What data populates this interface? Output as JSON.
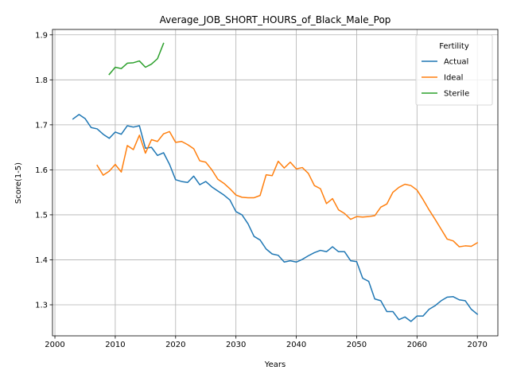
{
  "chart_data": {
    "type": "line",
    "title": "Average_JOB_SHORT_HOURS_of_Black_Male_Pop",
    "xlabel": "Years",
    "ylabel": "Score(1-5)",
    "xlim": [
      1999.6,
      2073.4
    ],
    "ylim": [
      1.231,
      1.912
    ],
    "x_ticks": [
      2000,
      2010,
      2020,
      2030,
      2040,
      2050,
      2060,
      2070
    ],
    "y_ticks": [
      1.3,
      1.4,
      1.5,
      1.6,
      1.7,
      1.8,
      1.9
    ],
    "grid": true,
    "legend": {
      "title": "Fertility",
      "placement": "top-right"
    },
    "series": [
      {
        "name": "Actual",
        "color": "#1f77b4",
        "x": [
          2003,
          2004,
          2005,
          2006,
          2007,
          2008,
          2009,
          2010,
          2011,
          2012,
          2013,
          2014,
          2015,
          2016,
          2017,
          2018,
          2019,
          2020,
          2021,
          2022,
          2023,
          2024,
          2025,
          2026,
          2027,
          2028,
          2029,
          2030,
          2031,
          2032,
          2033,
          2034,
          2035,
          2036,
          2037,
          2038,
          2039,
          2040,
          2041,
          2042,
          2043,
          2044,
          2045,
          2046,
          2047,
          2048,
          2049,
          2050,
          2051,
          2052,
          2053,
          2054,
          2055,
          2056,
          2057,
          2058,
          2059,
          2060,
          2061,
          2062,
          2063,
          2064,
          2065,
          2066,
          2067,
          2068,
          2069,
          2070
        ],
        "values": [
          1.713,
          1.723,
          1.714,
          1.694,
          1.691,
          1.679,
          1.67,
          1.684,
          1.679,
          1.698,
          1.695,
          1.698,
          1.648,
          1.65,
          1.632,
          1.638,
          1.612,
          1.578,
          1.574,
          1.572,
          1.586,
          1.567,
          1.574,
          1.562,
          1.553,
          1.544,
          1.533,
          1.507,
          1.5,
          1.48,
          1.452,
          1.444,
          1.424,
          1.413,
          1.41,
          1.395,
          1.398,
          1.395,
          1.401,
          1.409,
          1.416,
          1.421,
          1.418,
          1.429,
          1.418,
          1.418,
          1.398,
          1.396,
          1.359,
          1.352,
          1.313,
          1.309,
          1.285,
          1.285,
          1.267,
          1.273,
          1.263,
          1.275,
          1.275,
          1.29,
          1.298,
          1.309,
          1.317,
          1.318,
          1.311,
          1.309,
          1.29,
          1.279
        ]
      },
      {
        "name": "Ideal",
        "color": "#ff7f0e",
        "x": [
          2007,
          2008,
          2009,
          2010,
          2011,
          2012,
          2013,
          2014,
          2015,
          2016,
          2017,
          2018,
          2019,
          2020,
          2021,
          2022,
          2023,
          2024,
          2025,
          2026,
          2027,
          2028,
          2029,
          2030,
          2031,
          2032,
          2033,
          2034,
          2035,
          2036,
          2037,
          2038,
          2039,
          2040,
          2041,
          2042,
          2043,
          2044,
          2045,
          2046,
          2047,
          2048,
          2049,
          2050,
          2051,
          2052,
          2053,
          2054,
          2055,
          2056,
          2057,
          2058,
          2059,
          2060,
          2061,
          2062,
          2063,
          2064,
          2065,
          2066,
          2067,
          2068,
          2069,
          2070
        ],
        "values": [
          1.61,
          1.588,
          1.597,
          1.612,
          1.595,
          1.654,
          1.645,
          1.677,
          1.637,
          1.667,
          1.663,
          1.68,
          1.685,
          1.661,
          1.663,
          1.656,
          1.647,
          1.62,
          1.617,
          1.6,
          1.579,
          1.57,
          1.558,
          1.544,
          1.539,
          1.538,
          1.538,
          1.543,
          1.589,
          1.587,
          1.619,
          1.604,
          1.617,
          1.602,
          1.605,
          1.592,
          1.565,
          1.558,
          1.525,
          1.536,
          1.511,
          1.503,
          1.49,
          1.496,
          1.495,
          1.496,
          1.498,
          1.517,
          1.524,
          1.55,
          1.561,
          1.568,
          1.565,
          1.555,
          1.534,
          1.511,
          1.49,
          1.468,
          1.446,
          1.442,
          1.429,
          1.431,
          1.43,
          1.438
        ]
      },
      {
        "name": "Sterile",
        "color": "#2ca02c",
        "x": [
          2009,
          2010,
          2011,
          2012,
          2013,
          2014,
          2015,
          2016,
          2017,
          2018
        ],
        "values": [
          1.812,
          1.828,
          1.825,
          1.837,
          1.838,
          1.842,
          1.828,
          1.835,
          1.847,
          1.881
        ]
      }
    ]
  }
}
